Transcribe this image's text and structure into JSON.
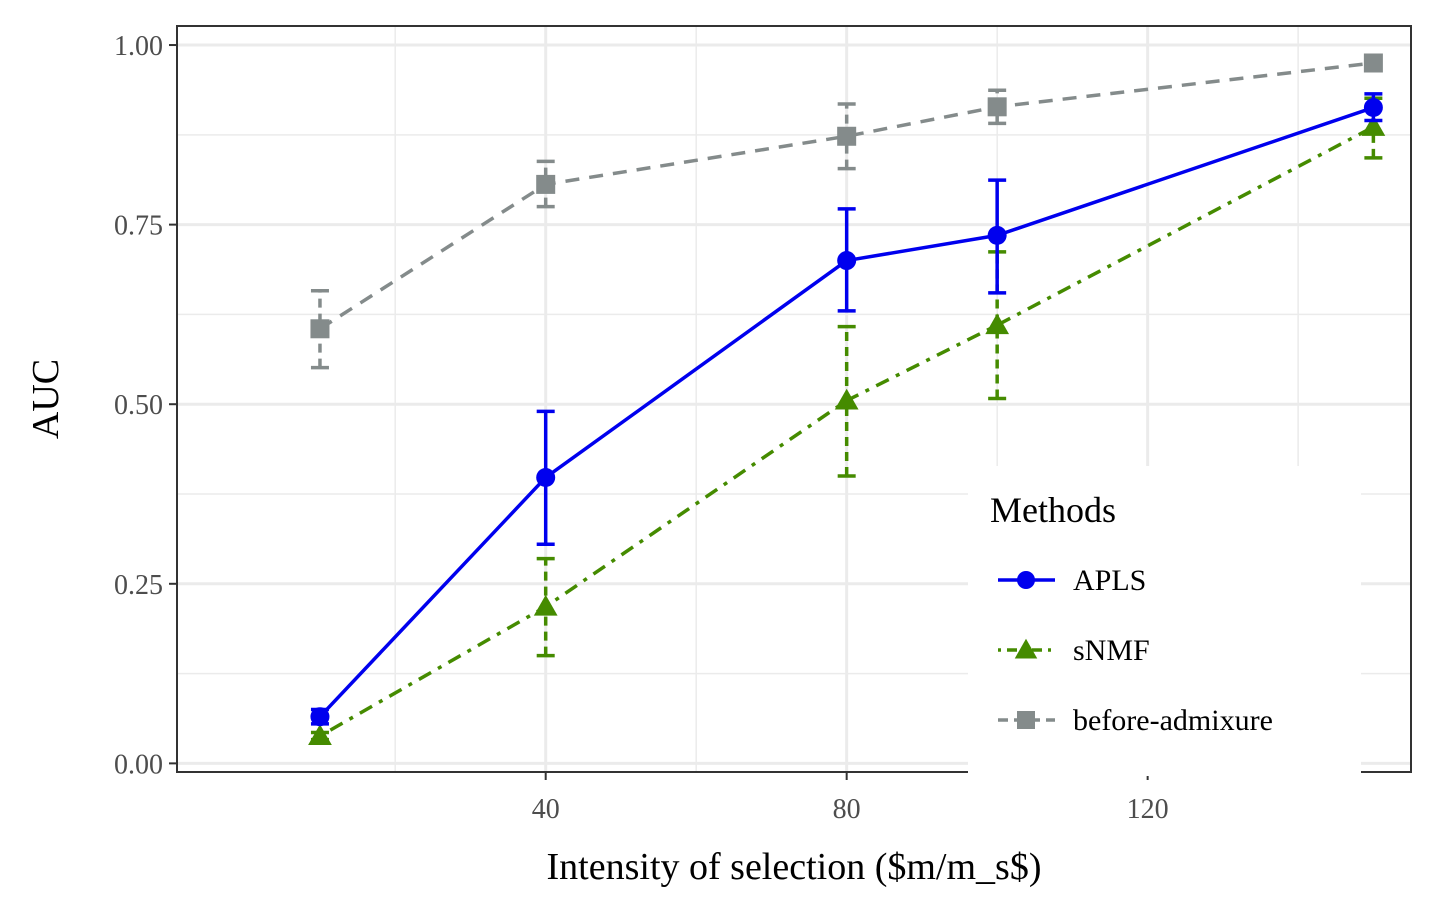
{
  "chart_data": {
    "type": "line",
    "xlabel": "Intensity of selection ($m/m_s$)",
    "ylabel": "AUC",
    "xlim": [
      -9,
      155
    ],
    "ylim": [
      -0.012,
      1.0265
    ],
    "x_ticks": [
      40,
      80,
      120
    ],
    "x_minor_ticks": [
      20,
      60,
      100,
      140
    ],
    "y_ticks": [
      0.0,
      0.25,
      0.5,
      0.75,
      1.0
    ],
    "y_tick_labels": [
      "0.00",
      "0.25",
      "0.50",
      "0.75",
      "1.00"
    ],
    "y_minor_ticks": [
      0.125,
      0.375,
      0.625,
      0.875
    ],
    "grid": true,
    "legend": {
      "title": "Methods",
      "position": "bottom-right"
    },
    "series": [
      {
        "name": "APLS",
        "color": "#0000ee",
        "marker": "circle",
        "line_style": "solid",
        "x": [
          10,
          40,
          80,
          100,
          150
        ],
        "y": [
          0.065,
          0.398,
          0.7,
          0.735,
          0.913
        ],
        "err_low": [
          0.055,
          0.305,
          0.63,
          0.655,
          0.895
        ],
        "err_high": [
          0.075,
          0.49,
          0.772,
          0.812,
          0.932
        ]
      },
      {
        "name": "sNMF",
        "color": "#458b00",
        "marker": "triangle",
        "line_style": "dotdash",
        "x": [
          10,
          40,
          80,
          100,
          150
        ],
        "y": [
          0.038,
          0.218,
          0.505,
          0.61,
          0.886
        ],
        "err_low": [
          0.033,
          0.15,
          0.4,
          0.508,
          0.843
        ],
        "err_high": [
          0.043,
          0.285,
          0.608,
          0.712,
          0.926
        ]
      },
      {
        "name": "before-admixure",
        "color": "#848b8b",
        "marker": "square",
        "line_style": "dashed",
        "x": [
          10,
          40,
          80,
          100,
          150
        ],
        "y": [
          0.605,
          0.806,
          0.873,
          0.914,
          0.975
        ],
        "err_low": [
          0.551,
          0.775,
          0.828,
          0.891,
          0.968
        ],
        "err_high": [
          0.658,
          0.838,
          0.918,
          0.937,
          0.982
        ]
      }
    ]
  }
}
